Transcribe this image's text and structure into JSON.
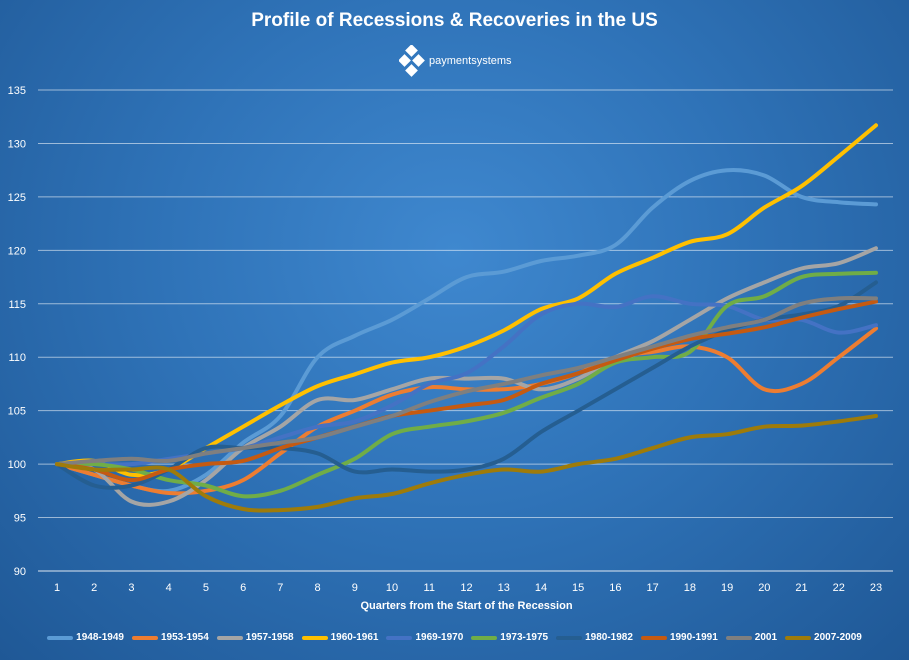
{
  "header": {
    "title": "Profile of Recessions & Recoveries in the US",
    "logo_text": "paymentsystems"
  },
  "chart_data": {
    "type": "line",
    "title": "Profile of Recessions & Recoveries in the US",
    "xlabel": "Quarters from the Start of the Recession",
    "ylabel": "",
    "x": [
      1,
      2,
      3,
      4,
      5,
      6,
      7,
      8,
      9,
      10,
      11,
      12,
      13,
      14,
      15,
      16,
      17,
      18,
      19,
      20,
      21,
      22,
      23
    ],
    "xlim": [
      1,
      23
    ],
    "ylim": [
      90,
      135
    ],
    "yticks": [
      90,
      95,
      100,
      105,
      110,
      115,
      120,
      125,
      130,
      135
    ],
    "grid": true,
    "legend_position": "bottom",
    "series": [
      {
        "name": "1948-1949",
        "color": "#5b9bd5",
        "values": [
          100,
          99.0,
          98.0,
          97.5,
          99.0,
          102.0,
          104.5,
          110.0,
          112.0,
          113.5,
          115.5,
          117.5,
          118.0,
          119.0,
          119.5,
          120.5,
          124.0,
          126.5,
          127.5,
          127.0,
          125.0,
          124.5,
          124.3
        ]
      },
      {
        "name": "1953-1954",
        "color": "#ed7d31",
        "values": [
          100,
          99.0,
          98.0,
          97.3,
          97.5,
          98.5,
          101.0,
          103.5,
          105.0,
          106.5,
          107.2,
          107.0,
          107.0,
          107.5,
          108.5,
          110.0,
          110.5,
          111.0,
          110.0,
          107.0,
          107.5,
          110.0,
          112.7
        ]
      },
      {
        "name": "1957-1958",
        "color": "#a5a5a5",
        "values": [
          100,
          99.5,
          96.5,
          96.5,
          98.5,
          101.5,
          103.5,
          106.0,
          106.0,
          107.0,
          108.0,
          108.0,
          108.0,
          107.0,
          108.0,
          110.0,
          111.5,
          113.5,
          115.5,
          117.0,
          118.3,
          118.8,
          120.2
        ]
      },
      {
        "name": "1960-1961",
        "color": "#ffc000",
        "values": [
          100,
          100.3,
          99.0,
          99.5,
          101.5,
          103.5,
          105.5,
          107.3,
          108.4,
          109.5,
          110.0,
          111.0,
          112.5,
          114.5,
          115.5,
          117.8,
          119.3,
          120.8,
          121.5,
          124.0,
          126.0,
          128.8,
          131.7
        ]
      },
      {
        "name": "1969-1970",
        "color": "#4472c4",
        "values": [
          100,
          100.0,
          100.0,
          100.5,
          101.0,
          101.5,
          102.5,
          103.5,
          104.0,
          105.5,
          107.5,
          108.5,
          111.0,
          114.0,
          115.0,
          114.7,
          115.7,
          115.0,
          114.8,
          113.5,
          113.5,
          112.3,
          113.0
        ]
      },
      {
        "name": "1973-1975",
        "color": "#70ad47",
        "values": [
          100,
          100.0,
          99.5,
          98.5,
          98.0,
          97.0,
          97.5,
          99.0,
          100.5,
          102.8,
          103.5,
          104.0,
          104.8,
          106.2,
          107.5,
          109.5,
          110.0,
          110.5,
          114.8,
          115.7,
          117.5,
          117.8,
          117.9
        ]
      },
      {
        "name": "1980-1982",
        "color": "#255e91",
        "values": [
          100,
          98.0,
          98.0,
          99.5,
          101.5,
          101.5,
          101.5,
          101.0,
          99.3,
          99.5,
          99.3,
          99.5,
          100.5,
          103.0,
          105.0,
          107.0,
          109.0,
          111.0,
          112.5,
          113.5,
          114.0,
          114.8,
          117.0
        ]
      },
      {
        "name": "1990-1991",
        "color": "#c55a11",
        "values": [
          100,
          99.5,
          98.5,
          99.5,
          100.0,
          100.3,
          101.5,
          102.5,
          103.5,
          104.5,
          105.0,
          105.5,
          106.0,
          107.5,
          108.5,
          109.7,
          110.8,
          111.7,
          112.2,
          112.8,
          113.7,
          114.5,
          115.2
        ]
      },
      {
        "name": "2001",
        "color": "#7f7f7f",
        "values": [
          100,
          100.3,
          100.5,
          100.3,
          101.0,
          101.5,
          102.0,
          102.5,
          103.5,
          104.5,
          105.8,
          106.8,
          107.5,
          108.3,
          109.0,
          110.0,
          111.0,
          112.0,
          112.8,
          113.5,
          115.0,
          115.5,
          115.5
        ]
      },
      {
        "name": "2007-2009",
        "color": "#9e7b0a",
        "values": [
          100,
          99.5,
          99.5,
          99.5,
          97.0,
          95.8,
          95.7,
          96.0,
          96.8,
          97.2,
          98.2,
          99.0,
          99.5,
          99.3,
          100.0,
          100.5,
          101.5,
          102.5,
          102.8,
          103.5,
          103.6,
          104.0,
          104.5
        ]
      }
    ]
  }
}
